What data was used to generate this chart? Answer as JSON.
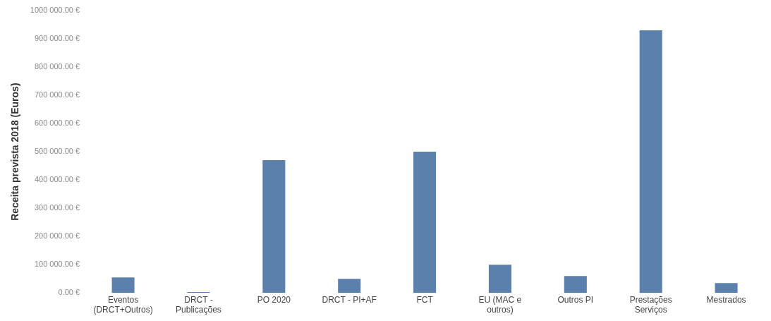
{
  "chart_data": {
    "type": "bar",
    "ylabel": "Receita prevista 2018 (Euros)",
    "categories": [
      [
        "Eventos",
        "(DRCT+Outros)"
      ],
      [
        "DRCT -",
        "Publicações"
      ],
      "PO 2020",
      "DRCT - PI+AF",
      "FCT",
      [
        "EU (MAC e",
        "outros)"
      ],
      "Outros PI",
      [
        "Prestações",
        "Serviços"
      ],
      "Mestrados"
    ],
    "values": [
      55000,
      3000,
      470000,
      50000,
      500000,
      100000,
      60000,
      930000,
      35000
    ],
    "color": "#5b80ab",
    "ylim": [
      0,
      1000000
    ],
    "yticks": [
      {
        "value": 0,
        "label": "0.00 €"
      },
      {
        "value": 100000,
        "label": "100 000.00 €"
      },
      {
        "value": 200000,
        "label": "200 000.00 €"
      },
      {
        "value": 300000,
        "label": "300 000.00 €"
      },
      {
        "value": 400000,
        "label": "400 000.00 €"
      },
      {
        "value": 500000,
        "label": "500 000.00 €"
      },
      {
        "value": 600000,
        "label": "600 000.00 €"
      },
      {
        "value": 700000,
        "label": "700 000.00 €"
      },
      {
        "value": 800000,
        "label": "800 000.00 €"
      },
      {
        "value": 900000,
        "label": "900 000.00 €"
      },
      {
        "value": 1000000,
        "label": "1000 000.00 €"
      }
    ],
    "grid": false,
    "legend": false
  }
}
